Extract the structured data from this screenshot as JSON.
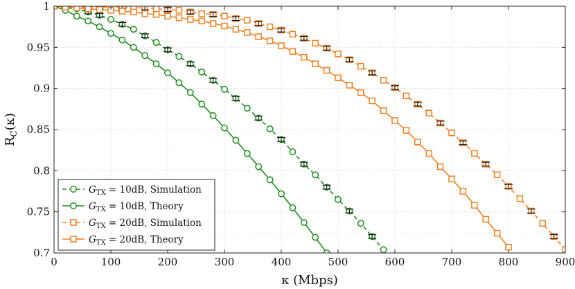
{
  "chart_data": {
    "type": "line",
    "xlabel": "κ (Mbps)",
    "ylabel": "R_C(κ)",
    "xlim": [
      0,
      900
    ],
    "ylim": [
      0.7,
      1.0
    ],
    "xticks": [
      0,
      100,
      200,
      300,
      400,
      500,
      600,
      700,
      800,
      900
    ],
    "xtick_labels": [
      "0",
      "100",
      "200",
      "300",
      "400",
      "500",
      "600",
      "700",
      "800",
      "900"
    ],
    "yticks": [
      0.7,
      0.75,
      0.8,
      0.85,
      0.9,
      0.95,
      1.0
    ],
    "ytick_labels": [
      "0.7",
      "0.75",
      "0.8",
      "0.85",
      "0.9",
      "0.95",
      "1"
    ],
    "grid": true,
    "legend_position": "bottom-left",
    "colors": {
      "green": "#1e8c1e",
      "orange": "#f07f20"
    },
    "series": [
      {
        "name": "G_TX = 10dB, Simulation",
        "legend_label": {
          "var": "G",
          "sub": "TX",
          "rest": " = 10dB, Simulation"
        },
        "color": "#1e8c1e",
        "marker": "circle",
        "dashed": true,
        "x": [
          0,
          20,
          40,
          60,
          80,
          100,
          120,
          140,
          160,
          180,
          200,
          220,
          240,
          260,
          280,
          300,
          320,
          340,
          360,
          380,
          400,
          420,
          440,
          460,
          480,
          500,
          520,
          540,
          560,
          580
        ],
        "y": [
          1.0,
          0.998,
          0.997,
          0.993,
          0.989,
          0.984,
          0.978,
          0.972,
          0.964,
          0.956,
          0.947,
          0.939,
          0.93,
          0.92,
          0.91,
          0.899,
          0.888,
          0.876,
          0.864,
          0.851,
          0.838,
          0.823,
          0.808,
          0.795,
          0.78,
          0.765,
          0.751,
          0.736,
          0.72,
          0.704
        ],
        "error_bar_x": [
          60,
          80,
          120,
          160,
          200,
          240,
          280,
          320,
          360,
          400,
          440,
          480,
          520,
          560
        ]
      },
      {
        "name": "G_TX = 10dB, Theory",
        "legend_label": {
          "var": "G",
          "sub": "TX",
          "rest": " = 10dB, Theory"
        },
        "color": "#1e8c1e",
        "marker": "circle",
        "dashed": false,
        "x": [
          0,
          20,
          40,
          60,
          80,
          100,
          120,
          140,
          160,
          180,
          200,
          220,
          240,
          260,
          280,
          300,
          320,
          340,
          360,
          380,
          400,
          420,
          440,
          460,
          480
        ],
        "y": [
          1.0,
          0.995,
          0.988,
          0.982,
          0.975,
          0.967,
          0.959,
          0.95,
          0.94,
          0.93,
          0.919,
          0.907,
          0.895,
          0.881,
          0.867,
          0.852,
          0.837,
          0.821,
          0.805,
          0.789,
          0.772,
          0.755,
          0.737,
          0.719,
          0.7
        ]
      },
      {
        "name": "G_TX = 20dB, Simulation",
        "legend_label": {
          "var": "G",
          "sub": "TX",
          "rest": " = 20dB, Simulation"
        },
        "color": "#f07f20",
        "marker": "square",
        "dashed": true,
        "x": [
          0,
          20,
          40,
          60,
          80,
          100,
          120,
          140,
          160,
          180,
          200,
          220,
          240,
          260,
          280,
          300,
          320,
          340,
          360,
          380,
          400,
          420,
          440,
          460,
          480,
          500,
          520,
          540,
          560,
          580,
          600,
          620,
          640,
          660,
          680,
          700,
          720,
          740,
          760,
          780,
          800,
          820,
          840,
          860,
          880,
          900
        ],
        "y": [
          1.0,
          1.0,
          0.999,
          0.999,
          0.999,
          0.999,
          0.999,
          0.998,
          0.998,
          0.997,
          0.996,
          0.995,
          0.993,
          0.991,
          0.99,
          0.988,
          0.985,
          0.983,
          0.979,
          0.975,
          0.971,
          0.966,
          0.961,
          0.955,
          0.949,
          0.942,
          0.935,
          0.927,
          0.919,
          0.91,
          0.901,
          0.891,
          0.881,
          0.87,
          0.858,
          0.846,
          0.834,
          0.821,
          0.808,
          0.795,
          0.781,
          0.766,
          0.751,
          0.736,
          0.72,
          0.704
        ],
        "error_bar_x": [
          60,
          80,
          120,
          160,
          200,
          240,
          280,
          320,
          360,
          400,
          440,
          480,
          520,
          560,
          600,
          640,
          680,
          720,
          760,
          800,
          840,
          880
        ]
      },
      {
        "name": "G_TX = 20dB, Theory",
        "legend_label": {
          "var": "G",
          "sub": "TX",
          "rest": " = 20dB, Theory"
        },
        "color": "#f07f20",
        "marker": "square",
        "dashed": false,
        "x": [
          0,
          20,
          40,
          60,
          80,
          100,
          120,
          140,
          160,
          180,
          200,
          220,
          240,
          260,
          280,
          300,
          320,
          340,
          360,
          380,
          400,
          420,
          440,
          460,
          480,
          500,
          520,
          540,
          560,
          580,
          600,
          620,
          640,
          660,
          680,
          700,
          720,
          740,
          760,
          780,
          800
        ],
        "y": [
          1.0,
          0.999,
          0.998,
          0.997,
          0.996,
          0.995,
          0.994,
          0.993,
          0.991,
          0.99,
          0.988,
          0.986,
          0.984,
          0.982,
          0.979,
          0.976,
          0.972,
          0.968,
          0.963,
          0.958,
          0.952,
          0.945,
          0.938,
          0.93,
          0.922,
          0.913,
          0.904,
          0.895,
          0.885,
          0.873,
          0.861,
          0.849,
          0.835,
          0.821,
          0.805,
          0.79,
          0.775,
          0.758,
          0.741,
          0.724,
          0.707
        ]
      }
    ]
  }
}
